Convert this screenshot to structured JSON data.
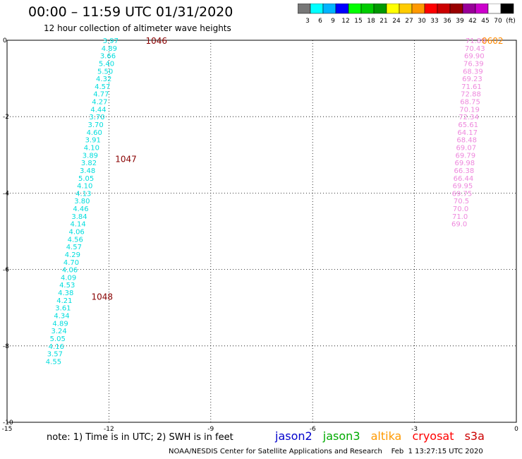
{
  "header": {
    "title": "00:00 – 11:59 UTC 01/31/2020",
    "subtitle": "12 hour collection of altimeter wave heights"
  },
  "colorbar": {
    "colors": [
      "#777777",
      "#00ffff",
      "#00b4ff",
      "#0000ff",
      "#00ff00",
      "#00cc00",
      "#009900",
      "#ffff00",
      "#ffcc00",
      "#ff9900",
      "#ff0000",
      "#cc0000",
      "#990000",
      "#990099",
      "#cc00cc",
      "#ffffff",
      "#000000"
    ],
    "labels": [
      "3",
      "6",
      "9",
      "12",
      "15",
      "18",
      "21",
      "24",
      "27",
      "30",
      "33",
      "36",
      "39",
      "42",
      "45",
      "70",
      "(ft)"
    ]
  },
  "chart_data": {
    "type": "scatter",
    "xlim": [
      -15,
      0
    ],
    "ylim": [
      -10,
      0
    ],
    "x_ticks": [
      "-15",
      "-12",
      "-9",
      "-6",
      "-3",
      "0"
    ],
    "y_ticks": [
      "0",
      "-2",
      "-4",
      "-6",
      "-8",
      "-10"
    ],
    "grid": true,
    "series": [
      {
        "color": "#00dddd",
        "points": [
          {
            "x": -11.95,
            "y": 0.0,
            "v": "3.97"
          },
          {
            "x": -11.99,
            "y": -0.2,
            "v": "4.89"
          },
          {
            "x": -12.03,
            "y": -0.4,
            "v": "3.66"
          },
          {
            "x": -12.07,
            "y": -0.6,
            "v": "5.40"
          },
          {
            "x": -12.11,
            "y": -0.8,
            "v": "5.50"
          },
          {
            "x": -12.15,
            "y": -1.0,
            "v": "4.32"
          },
          {
            "x": -12.19,
            "y": -1.2,
            "v": "4.57"
          },
          {
            "x": -12.23,
            "y": -1.4,
            "v": "4.77"
          },
          {
            "x": -12.27,
            "y": -1.6,
            "v": "4.27"
          },
          {
            "x": -12.31,
            "y": -1.8,
            "v": "4.44"
          },
          {
            "x": -12.35,
            "y": -2.0,
            "v": "3.70"
          },
          {
            "x": -12.39,
            "y": -2.2,
            "v": "3.70"
          },
          {
            "x": -12.43,
            "y": -2.4,
            "v": "4.60"
          },
          {
            "x": -12.47,
            "y": -2.6,
            "v": "3.91"
          },
          {
            "x": -12.51,
            "y": -2.8,
            "v": "4.10"
          },
          {
            "x": -12.55,
            "y": -3.0,
            "v": "3.89"
          },
          {
            "x": -12.59,
            "y": -3.2,
            "v": "3.82"
          },
          {
            "x": -12.63,
            "y": -3.4,
            "v": "3.48"
          },
          {
            "x": -12.67,
            "y": -3.6,
            "v": "5.05"
          },
          {
            "x": -12.71,
            "y": -3.8,
            "v": "4.10"
          },
          {
            "x": -12.75,
            "y": -4.0,
            "v": "4.13"
          },
          {
            "x": -12.79,
            "y": -4.2,
            "v": "3.80"
          },
          {
            "x": -12.83,
            "y": -4.4,
            "v": "4.46"
          },
          {
            "x": -12.87,
            "y": -4.6,
            "v": "3.84"
          },
          {
            "x": -12.91,
            "y": -4.8,
            "v": "4.14"
          },
          {
            "x": -12.95,
            "y": -5.0,
            "v": "4.06"
          },
          {
            "x": -12.99,
            "y": -5.2,
            "v": "4.56"
          },
          {
            "x": -13.03,
            "y": -5.4,
            "v": "4.57"
          },
          {
            "x": -13.07,
            "y": -5.6,
            "v": "4.29"
          },
          {
            "x": -13.11,
            "y": -5.8,
            "v": "4.70"
          },
          {
            "x": -13.15,
            "y": -6.0,
            "v": "4.06"
          },
          {
            "x": -13.19,
            "y": -6.2,
            "v": "4.09"
          },
          {
            "x": -13.23,
            "y": -6.4,
            "v": "4.53"
          },
          {
            "x": -13.27,
            "y": -6.6,
            "v": "4.38"
          },
          {
            "x": -13.31,
            "y": -6.8,
            "v": "4.21"
          },
          {
            "x": -13.35,
            "y": -7.0,
            "v": "3.61"
          },
          {
            "x": -13.39,
            "y": -7.2,
            "v": "4.34"
          },
          {
            "x": -13.43,
            "y": -7.4,
            "v": "4.89"
          },
          {
            "x": -13.47,
            "y": -7.6,
            "v": "3.24"
          },
          {
            "x": -13.51,
            "y": -7.8,
            "v": "5.05"
          },
          {
            "x": -13.55,
            "y": -8.0,
            "v": "4.16"
          },
          {
            "x": -13.59,
            "y": -8.2,
            "v": "3.57"
          },
          {
            "x": -13.63,
            "y": -8.4,
            "v": "4.55"
          }
        ]
      },
      {
        "color": "#ee88dd",
        "points": [
          {
            "x": -1.2,
            "y": 0.0,
            "v": "71.89"
          },
          {
            "x": -1.22,
            "y": -0.2,
            "v": "70.43"
          },
          {
            "x": -1.24,
            "y": -0.4,
            "v": "69.90"
          },
          {
            "x": -1.26,
            "y": -0.6,
            "v": "76.39"
          },
          {
            "x": -1.28,
            "y": -0.8,
            "v": "68.39"
          },
          {
            "x": -1.3,
            "y": -1.0,
            "v": "69.23"
          },
          {
            "x": -1.32,
            "y": -1.2,
            "v": "71.61"
          },
          {
            "x": -1.34,
            "y": -1.4,
            "v": "72.88"
          },
          {
            "x": -1.36,
            "y": -1.6,
            "v": "68.75"
          },
          {
            "x": -1.38,
            "y": -1.8,
            "v": "70.19"
          },
          {
            "x": -1.4,
            "y": -2.0,
            "v": "72.34"
          },
          {
            "x": -1.42,
            "y": -2.2,
            "v": "65.61"
          },
          {
            "x": -1.44,
            "y": -2.4,
            "v": "64.17"
          },
          {
            "x": -1.46,
            "y": -2.6,
            "v": "68.48"
          },
          {
            "x": -1.48,
            "y": -2.8,
            "v": "69.07"
          },
          {
            "x": -1.5,
            "y": -3.0,
            "v": "69.79"
          },
          {
            "x": -1.52,
            "y": -3.2,
            "v": "69.98"
          },
          {
            "x": -1.54,
            "y": -3.4,
            "v": "66.38"
          },
          {
            "x": -1.56,
            "y": -3.6,
            "v": "66.44"
          },
          {
            "x": -1.58,
            "y": -3.8,
            "v": "69.95"
          },
          {
            "x": -1.6,
            "y": -4.0,
            "v": "69.75"
          },
          {
            "x": -1.62,
            "y": -4.2,
            "v": "70.5"
          },
          {
            "x": -1.64,
            "y": -4.4,
            "v": "70.0"
          },
          {
            "x": -1.66,
            "y": -4.6,
            "v": "71.0"
          },
          {
            "x": -1.68,
            "y": -4.8,
            "v": "69.0"
          }
        ]
      }
    ],
    "annotations": [
      {
        "x": -10.6,
        "y": 0.0,
        "text": "1046",
        "color": "#880000"
      },
      {
        "x": -11.5,
        "y": -3.1,
        "text": "1047",
        "color": "#880000"
      },
      {
        "x": -12.2,
        "y": -6.7,
        "text": "1048",
        "color": "#880000"
      },
      {
        "x": -0.7,
        "y": 0.0,
        "text": "0602",
        "color": "#ff8800"
      }
    ]
  },
  "note": "note:  1) Time is in UTC;  2) SWH is in feet",
  "legend": [
    {
      "name": "jason2",
      "color": "#0000cc"
    },
    {
      "name": "jason3",
      "color": "#00aa00"
    },
    {
      "name": "altika",
      "color": "#ff9900"
    },
    {
      "name": "cryosat",
      "color": "#ff0000"
    },
    {
      "name": "s3a",
      "color": "#cc0000"
    }
  ],
  "footer": "NOAA/NESDIS Center for Satellite Applications and Research    Feb  1 13:27:15 UTC 2020"
}
